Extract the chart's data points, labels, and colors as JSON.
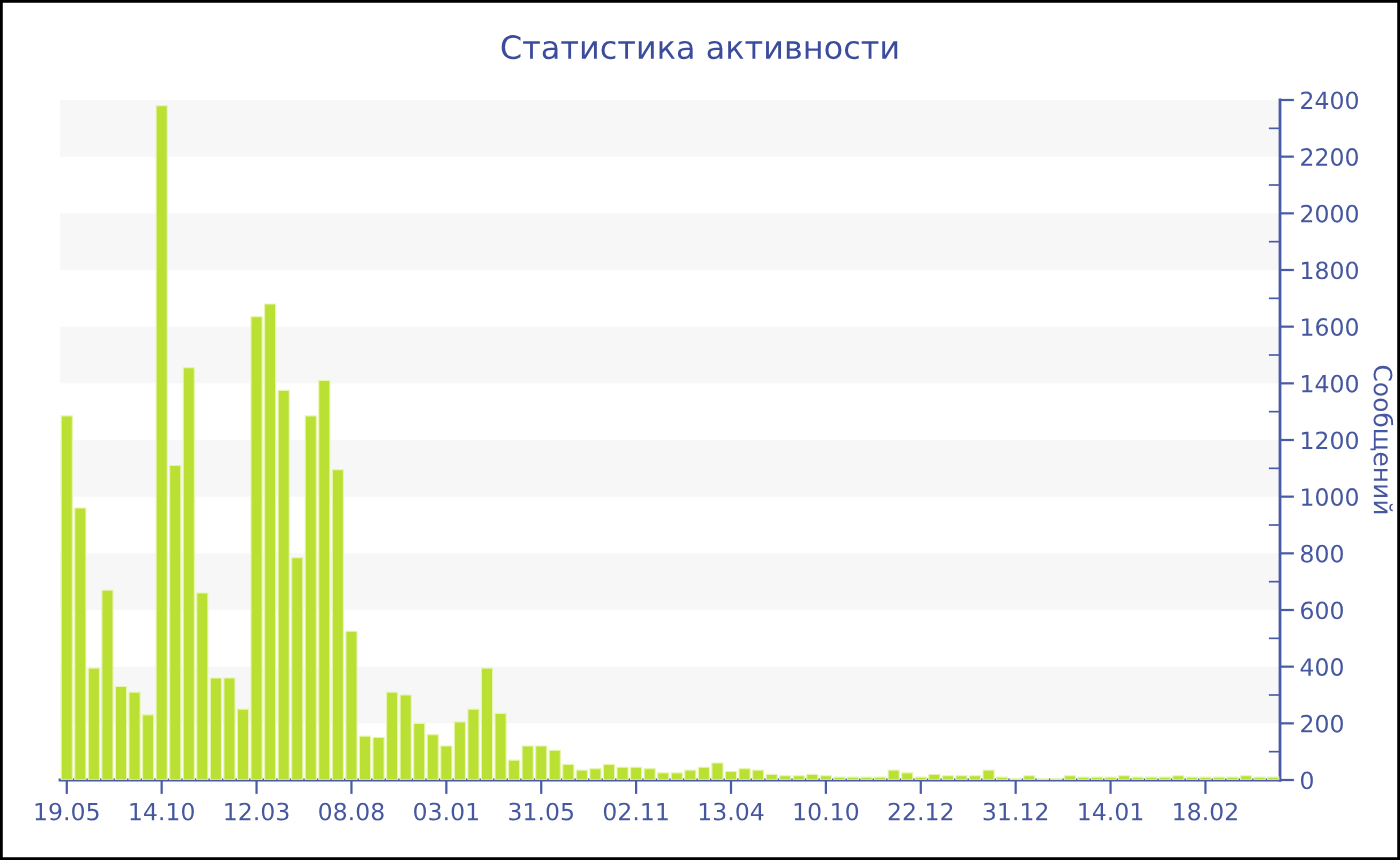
{
  "chart_data": {
    "type": "bar",
    "title": "Статистика активности",
    "ylabel": "Сообщений",
    "categories": [
      "19.05",
      null,
      null,
      null,
      null,
      null,
      null,
      "14.10",
      null,
      null,
      null,
      null,
      null,
      null,
      "12.03",
      null,
      null,
      null,
      null,
      null,
      null,
      "08.08",
      null,
      null,
      null,
      null,
      null,
      null,
      "03.01",
      null,
      null,
      null,
      null,
      null,
      null,
      "31.05",
      null,
      null,
      null,
      null,
      null,
      null,
      "02.11",
      null,
      null,
      null,
      null,
      null,
      null,
      "13.04",
      null,
      null,
      null,
      null,
      null,
      null,
      "10.10",
      null,
      null,
      null,
      null,
      null,
      null,
      "22.12",
      null,
      null,
      null,
      null,
      null,
      null,
      "31.12",
      null,
      null,
      null,
      null,
      null,
      null,
      "14.01",
      null,
      null,
      null,
      null,
      null,
      null,
      "18.02",
      null,
      null,
      null,
      null,
      null
    ],
    "values": [
      1285,
      960,
      395,
      670,
      330,
      310,
      230,
      2380,
      1110,
      1455,
      660,
      360,
      360,
      250,
      1635,
      1680,
      1375,
      785,
      1285,
      1410,
      1095,
      525,
      155,
      150,
      310,
      300,
      200,
      160,
      120,
      205,
      250,
      395,
      235,
      70,
      120,
      120,
      105,
      55,
      35,
      40,
      55,
      45,
      45,
      40,
      25,
      25,
      35,
      45,
      60,
      30,
      40,
      35,
      20,
      15,
      15,
      20,
      15,
      10,
      10,
      10,
      10,
      35,
      25,
      10,
      20,
      15,
      15,
      15,
      35,
      10,
      5,
      15,
      5,
      5,
      15,
      10,
      10,
      10,
      15,
      10,
      10,
      10,
      15,
      10,
      10,
      10,
      10,
      15,
      10,
      10
    ],
    "color": "#bbe034",
    "ylim": [
      0,
      2400
    ],
    "yticks": [
      0,
      200,
      400,
      600,
      800,
      1000,
      1200,
      1400,
      1600,
      1800,
      2000,
      2200,
      2400
    ],
    "bands": [
      {
        "axis": "y",
        "from": 200,
        "to": 400,
        "color": "#f7f7f7"
      },
      {
        "axis": "y",
        "from": 600,
        "to": 800,
        "color": "#f7f7f7"
      },
      {
        "axis": "y",
        "from": 1000,
        "to": 1200,
        "color": "#f7f7f7"
      },
      {
        "axis": "y",
        "from": 1400,
        "to": 1600,
        "color": "#f7f7f7"
      },
      {
        "axis": "y",
        "from": 1800,
        "to": 2000,
        "color": "#f7f7f7"
      },
      {
        "axis": "y",
        "from": 2200,
        "to": 2400,
        "color": "#f7f7f7"
      }
    ],
    "grid": false
  }
}
